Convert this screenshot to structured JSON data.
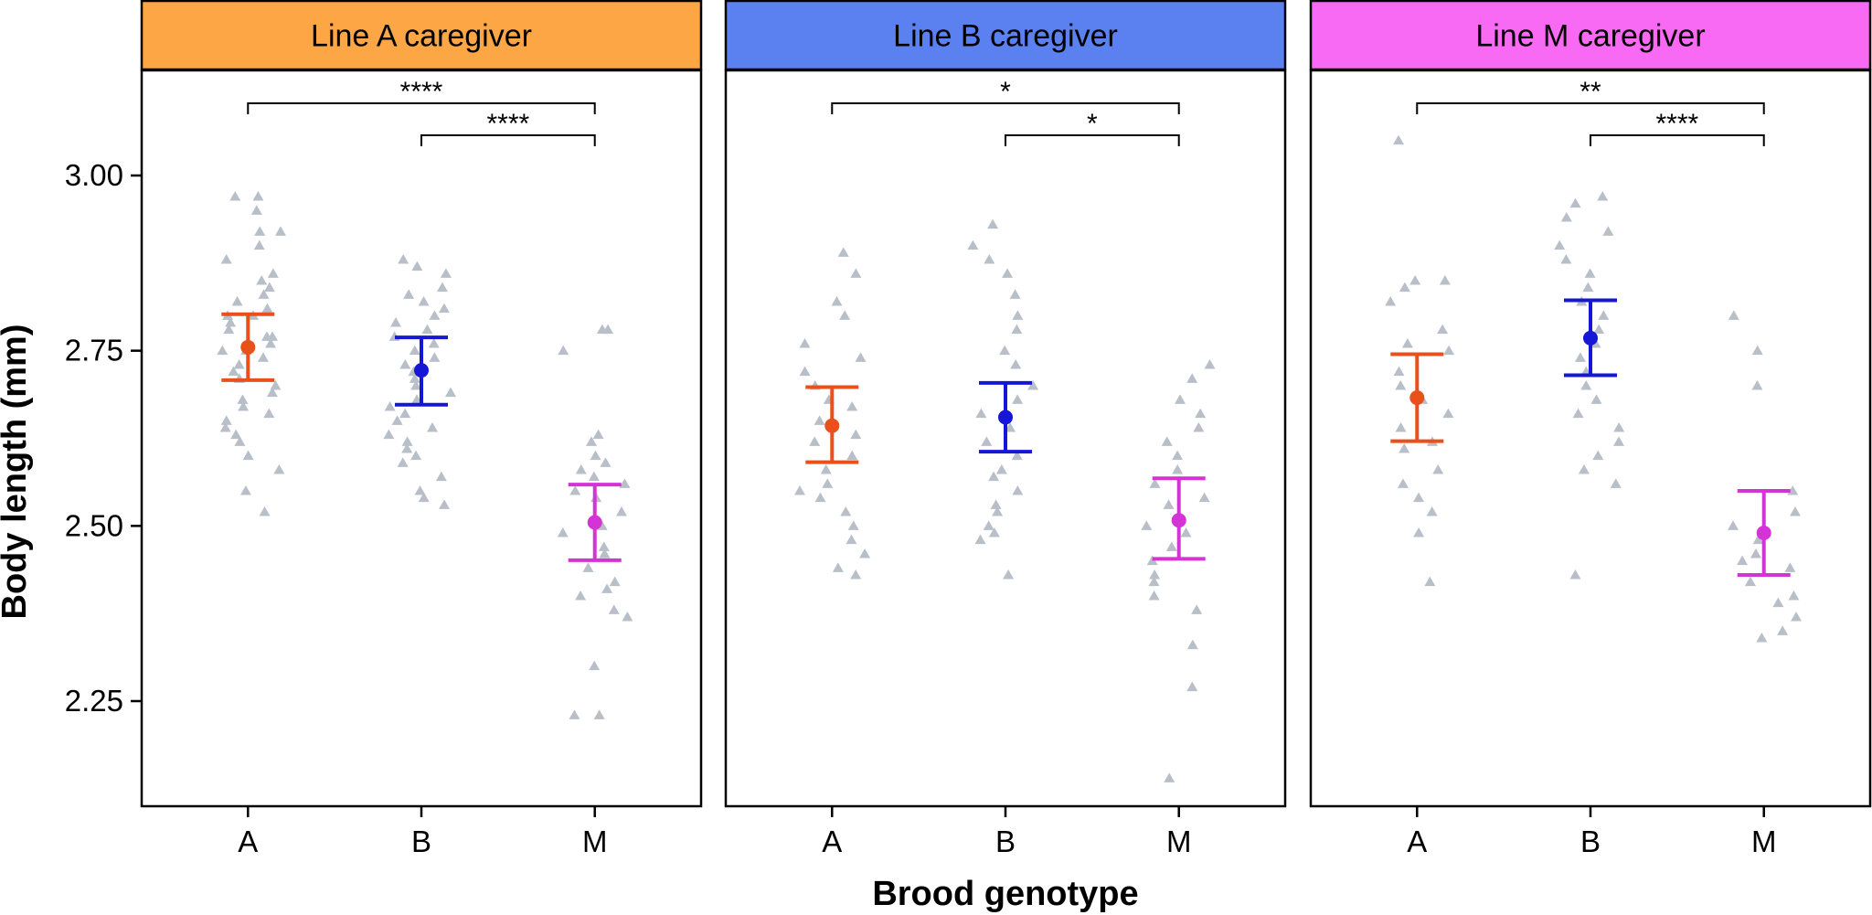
{
  "chart_data": {
    "type": "scatter",
    "xlabel": "Brood genotype",
    "ylabel": "Body length (mm)",
    "ylim": [
      2.1,
      3.15
    ],
    "yticks": [
      2.25,
      2.5,
      2.75,
      3.0
    ],
    "ytick_labels": [
      "2.25",
      "2.50",
      "2.75",
      "3.00"
    ],
    "categories": [
      "A",
      "B",
      "M"
    ],
    "colors": {
      "A": "#E8501C",
      "B": "#1616D6",
      "M": "#D433D6",
      "points": "#B8BFC8"
    },
    "panels": [
      {
        "title": "Line A caregiver",
        "strip_color": "#FCA646",
        "groups": [
          {
            "genotype": "A",
            "mean": 2.755,
            "lower": 2.708,
            "upper": 2.802,
            "points": [
              2.97,
              2.97,
              2.95,
              2.92,
              2.92,
              2.9,
              2.88,
              2.86,
              2.85,
              2.84,
              2.83,
              2.82,
              2.81,
              2.8,
              2.8,
              2.79,
              2.78,
              2.77,
              2.77,
              2.76,
              2.75,
              2.75,
              2.74,
              2.73,
              2.72,
              2.71,
              2.7,
              2.69,
              2.68,
              2.67,
              2.66,
              2.65,
              2.64,
              2.63,
              2.62,
              2.6,
              2.58,
              2.55,
              2.52
            ]
          },
          {
            "genotype": "B",
            "mean": 2.722,
            "lower": 2.673,
            "upper": 2.769,
            "points": [
              2.88,
              2.87,
              2.86,
              2.84,
              2.83,
              2.82,
              2.81,
              2.8,
              2.79,
              2.78,
              2.77,
              2.76,
              2.75,
              2.74,
              2.73,
              2.72,
              2.71,
              2.7,
              2.69,
              2.68,
              2.67,
              2.66,
              2.65,
              2.64,
              2.63,
              2.62,
              2.61,
              2.6,
              2.59,
              2.57,
              2.55,
              2.54,
              2.53
            ]
          },
          {
            "genotype": "M",
            "mean": 2.505,
            "lower": 2.451,
            "upper": 2.559,
            "points": [
              2.78,
              2.78,
              2.75,
              2.63,
              2.62,
              2.6,
              2.59,
              2.58,
              2.57,
              2.56,
              2.55,
              2.54,
              2.52,
              2.5,
              2.49,
              2.47,
              2.46,
              2.44,
              2.42,
              2.41,
              2.4,
              2.38,
              2.37,
              2.3,
              2.23,
              2.23
            ]
          }
        ],
        "comparisons": [
          {
            "from": "A",
            "to": "M",
            "label": "****",
            "level": 2
          },
          {
            "from": "B",
            "to": "M",
            "label": "****",
            "level": 1
          }
        ]
      },
      {
        "title": "Line B caregiver",
        "strip_color": "#5B80EF",
        "groups": [
          {
            "genotype": "A",
            "mean": 2.643,
            "lower": 2.591,
            "upper": 2.698,
            "points": [
              2.89,
              2.86,
              2.82,
              2.8,
              2.76,
              2.74,
              2.72,
              2.7,
              2.68,
              2.67,
              2.65,
              2.63,
              2.62,
              2.6,
              2.58,
              2.56,
              2.55,
              2.54,
              2.52,
              2.5,
              2.48,
              2.46,
              2.44,
              2.43
            ]
          },
          {
            "genotype": "B",
            "mean": 2.655,
            "lower": 2.606,
            "upper": 2.704,
            "points": [
              2.93,
              2.9,
              2.88,
              2.86,
              2.83,
              2.8,
              2.78,
              2.75,
              2.73,
              2.7,
              2.68,
              2.66,
              2.64,
              2.62,
              2.6,
              2.58,
              2.57,
              2.55,
              2.53,
              2.52,
              2.5,
              2.49,
              2.48,
              2.43
            ]
          },
          {
            "genotype": "M",
            "mean": 2.508,
            "lower": 2.453,
            "upper": 2.568,
            "points": [
              2.73,
              2.71,
              2.68,
              2.66,
              2.64,
              2.62,
              2.6,
              2.58,
              2.56,
              2.54,
              2.53,
              2.5,
              2.49,
              2.47,
              2.45,
              2.43,
              2.42,
              2.4,
              2.38,
              2.33,
              2.27,
              2.14
            ]
          }
        ],
        "comparisons": [
          {
            "from": "A",
            "to": "M",
            "label": "*",
            "level": 2
          },
          {
            "from": "B",
            "to": "M",
            "label": "*",
            "level": 1
          }
        ]
      },
      {
        "title": "Line M caregiver",
        "strip_color": "#F96AF4",
        "groups": [
          {
            "genotype": "A",
            "mean": 2.683,
            "lower": 2.621,
            "upper": 2.745,
            "points": [
              3.05,
              2.85,
              2.85,
              2.84,
              2.82,
              2.78,
              2.76,
              2.75,
              2.72,
              2.7,
              2.68,
              2.66,
              2.64,
              2.62,
              2.61,
              2.58,
              2.56,
              2.54,
              2.52,
              2.49,
              2.42
            ]
          },
          {
            "genotype": "B",
            "mean": 2.768,
            "lower": 2.715,
            "upper": 2.822,
            "points": [
              2.97,
              2.96,
              2.94,
              2.92,
              2.9,
              2.88,
              2.86,
              2.84,
              2.82,
              2.8,
              2.78,
              2.76,
              2.74,
              2.72,
              2.7,
              2.68,
              2.66,
              2.64,
              2.62,
              2.6,
              2.58,
              2.56,
              2.43
            ]
          },
          {
            "genotype": "M",
            "mean": 2.49,
            "lower": 2.43,
            "upper": 2.55,
            "points": [
              2.8,
              2.75,
              2.7,
              2.55,
              2.52,
              2.5,
              2.48,
              2.46,
              2.45,
              2.44,
              2.42,
              2.4,
              2.39,
              2.37,
              2.35,
              2.34
            ]
          }
        ],
        "comparisons": [
          {
            "from": "A",
            "to": "M",
            "label": "**",
            "level": 2
          },
          {
            "from": "B",
            "to": "M",
            "label": "****",
            "level": 1
          }
        ]
      }
    ]
  }
}
